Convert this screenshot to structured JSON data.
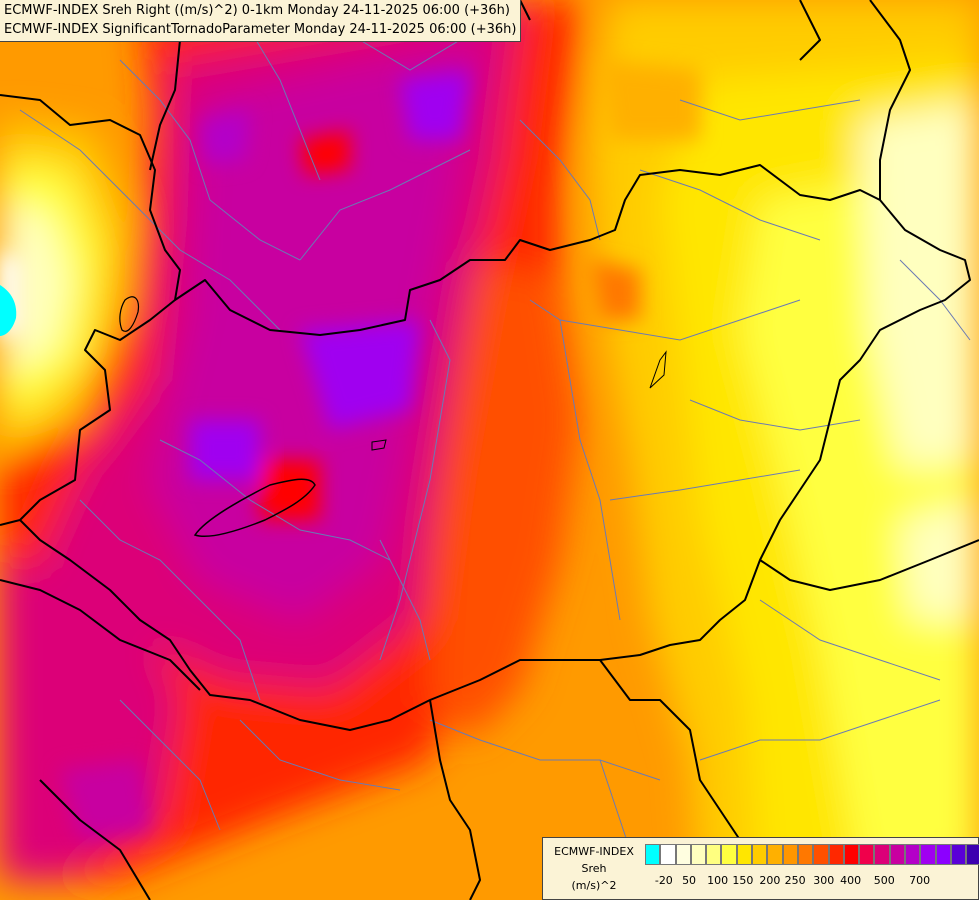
{
  "titles": {
    "line1": "ECMWF-INDEX Sreh Right ((m/s)^2) 0-1km Monday 24-11-2025 06:00 (+36h)",
    "line2": "ECMWF-INDEX SignificantTornadoParameter Monday 24-11-2025 06:00 (+36h)"
  },
  "legend": {
    "line1": "ECMWF-INDEX",
    "line2": "Sreh",
    "line3": "(m/s)^2",
    "colors": [
      "#00ffff",
      "#ffffff",
      "#fffee0",
      "#ffffbf",
      "#ffff80",
      "#ffff40",
      "#ffe600",
      "#ffcc00",
      "#ffb000",
      "#ff9600",
      "#ff7800",
      "#ff5000",
      "#ff2800",
      "#ff0000",
      "#f0004b",
      "#dc0078",
      "#c800a0",
      "#b400c8",
      "#a000f0",
      "#8c00ff",
      "#5a00d8",
      "#3c00b0",
      "#1e0090",
      "#000080"
    ],
    "ticks": [
      "-20",
      "50",
      "100",
      "150",
      "200",
      "250",
      "300",
      "400",
      "500",
      "700"
    ]
  },
  "map_colors": {
    "border": "#000000",
    "region_line": "#6a7ab4"
  }
}
